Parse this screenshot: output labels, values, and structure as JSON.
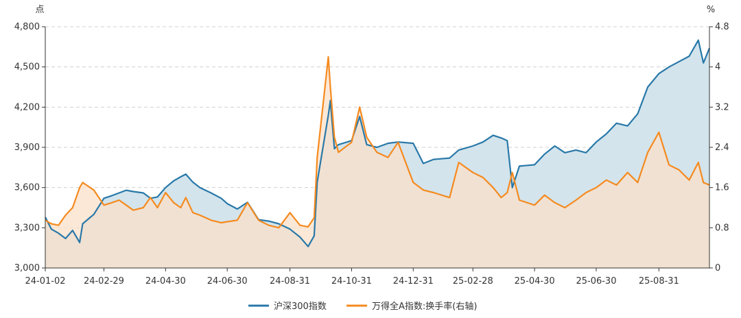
{
  "chart_data": {
    "type": "line",
    "left_axis_unit": "点",
    "right_axis_unit": "%",
    "y_left": {
      "min": 3000,
      "max": 4800,
      "ticks": [
        3000,
        3300,
        3600,
        3900,
        4200,
        4500,
        4800
      ],
      "tick_labels": [
        "3,000",
        "3,300",
        "3,600",
        "3,900",
        "4,200",
        "4,500",
        "4,800"
      ]
    },
    "y_right": {
      "min": 0,
      "max": 4.8,
      "ticks": [
        0,
        0.8,
        1.6,
        2.4,
        3.2,
        4,
        4.8
      ],
      "tick_labels": [
        "0",
        "0.8",
        "1.6",
        "2.4",
        "3.2",
        "4",
        "4.8"
      ]
    },
    "x_ticks": [
      "24-01-02",
      "24-02-29",
      "24-04-30",
      "24-06-30",
      "24-08-31",
      "24-10-31",
      "24-12-31",
      "25-02-28",
      "25-04-30",
      "25-06-30",
      "25-08-31"
    ],
    "x_range": [
      "2024-01-02",
      "2025-10-20"
    ],
    "grid": true,
    "legend_position": "bottom-center",
    "series": [
      {
        "name": "沪深300指数",
        "axis": "left",
        "color": "#2878a8",
        "fill": "#d3e4ec",
        "points": [
          [
            "2024-01-02",
            3380
          ],
          [
            "2024-01-08",
            3290
          ],
          [
            "2024-01-15",
            3260
          ],
          [
            "2024-01-22",
            3220
          ],
          [
            "2024-01-29",
            3280
          ],
          [
            "2024-02-05",
            3190
          ],
          [
            "2024-02-08",
            3330
          ],
          [
            "2024-02-19",
            3400
          ],
          [
            "2024-02-29",
            3520
          ],
          [
            "2024-03-08",
            3540
          ],
          [
            "2024-03-15",
            3560
          ],
          [
            "2024-03-22",
            3580
          ],
          [
            "2024-03-29",
            3570
          ],
          [
            "2024-04-08",
            3560
          ],
          [
            "2024-04-15",
            3520
          ],
          [
            "2024-04-22",
            3530
          ],
          [
            "2024-04-30",
            3600
          ],
          [
            "2024-05-08",
            3650
          ],
          [
            "2024-05-15",
            3680
          ],
          [
            "2024-05-20",
            3700
          ],
          [
            "2024-05-27",
            3640
          ],
          [
            "2024-06-03",
            3600
          ],
          [
            "2024-06-14",
            3560
          ],
          [
            "2024-06-24",
            3520
          ],
          [
            "2024-06-30",
            3480
          ],
          [
            "2024-07-10",
            3440
          ],
          [
            "2024-07-20",
            3490
          ],
          [
            "2024-07-31",
            3360
          ],
          [
            "2024-08-10",
            3350
          ],
          [
            "2024-08-20",
            3330
          ],
          [
            "2024-08-31",
            3290
          ],
          [
            "2024-09-10",
            3230
          ],
          [
            "2024-09-18",
            3160
          ],
          [
            "2024-09-24",
            3240
          ],
          [
            "2024-09-27",
            3640
          ],
          [
            "2024-10-08",
            4140
          ],
          [
            "2024-10-10",
            4250
          ],
          [
            "2024-10-14",
            3890
          ],
          [
            "2024-10-18",
            3920
          ],
          [
            "2024-10-31",
            3950
          ],
          [
            "2024-11-08",
            4130
          ],
          [
            "2024-11-15",
            3920
          ],
          [
            "2024-11-25",
            3900
          ],
          [
            "2024-12-06",
            3930
          ],
          [
            "2024-12-16",
            3940
          ],
          [
            "2024-12-31",
            3930
          ],
          [
            "2025-01-10",
            3780
          ],
          [
            "2025-01-20",
            3810
          ],
          [
            "2025-02-05",
            3820
          ],
          [
            "2025-02-14",
            3880
          ],
          [
            "2025-02-28",
            3910
          ],
          [
            "2025-03-10",
            3940
          ],
          [
            "2025-03-20",
            3990
          ],
          [
            "2025-03-28",
            3970
          ],
          [
            "2025-04-03",
            3950
          ],
          [
            "2025-04-08",
            3600
          ],
          [
            "2025-04-15",
            3760
          ],
          [
            "2025-04-30",
            3770
          ],
          [
            "2025-05-10",
            3850
          ],
          [
            "2025-05-20",
            3910
          ],
          [
            "2025-05-30",
            3860
          ],
          [
            "2025-06-10",
            3880
          ],
          [
            "2025-06-20",
            3860
          ],
          [
            "2025-06-30",
            3940
          ],
          [
            "2025-07-10",
            4000
          ],
          [
            "2025-07-20",
            4080
          ],
          [
            "2025-07-31",
            4060
          ],
          [
            "2025-08-10",
            4150
          ],
          [
            "2025-08-20",
            4350
          ],
          [
            "2025-08-31",
            4450
          ],
          [
            "2025-09-10",
            4500
          ],
          [
            "2025-09-20",
            4540
          ],
          [
            "2025-09-30",
            4580
          ],
          [
            "2025-10-09",
            4700
          ],
          [
            "2025-10-14",
            4530
          ],
          [
            "2025-10-20",
            4640
          ]
        ]
      },
      {
        "name": "万得全A指数:换手率(右轴)",
        "axis": "right",
        "color": "#f58a1f",
        "fill": "#fbe0c9",
        "points": [
          [
            "2024-01-02",
            0.95
          ],
          [
            "2024-01-08",
            0.88
          ],
          [
            "2024-01-15",
            0.85
          ],
          [
            "2024-01-22",
            1.05
          ],
          [
            "2024-01-29",
            1.2
          ],
          [
            "2024-02-05",
            1.6
          ],
          [
            "2024-02-08",
            1.7
          ],
          [
            "2024-02-19",
            1.55
          ],
          [
            "2024-02-29",
            1.25
          ],
          [
            "2024-03-08",
            1.3
          ],
          [
            "2024-03-15",
            1.35
          ],
          [
            "2024-03-22",
            1.25
          ],
          [
            "2024-03-29",
            1.15
          ],
          [
            "2024-04-08",
            1.2
          ],
          [
            "2024-04-15",
            1.4
          ],
          [
            "2024-04-22",
            1.2
          ],
          [
            "2024-04-30",
            1.5
          ],
          [
            "2024-05-08",
            1.3
          ],
          [
            "2024-05-15",
            1.2
          ],
          [
            "2024-05-20",
            1.4
          ],
          [
            "2024-05-27",
            1.1
          ],
          [
            "2024-06-03",
            1.05
          ],
          [
            "2024-06-14",
            0.95
          ],
          [
            "2024-06-24",
            0.9
          ],
          [
            "2024-06-30",
            0.92
          ],
          [
            "2024-07-10",
            0.95
          ],
          [
            "2024-07-20",
            1.3
          ],
          [
            "2024-07-31",
            0.95
          ],
          [
            "2024-08-10",
            0.85
          ],
          [
            "2024-08-20",
            0.8
          ],
          [
            "2024-08-31",
            1.1
          ],
          [
            "2024-09-10",
            0.85
          ],
          [
            "2024-09-18",
            0.82
          ],
          [
            "2024-09-24",
            1.0
          ],
          [
            "2024-09-27",
            2.2
          ],
          [
            "2024-10-08",
            4.2
          ],
          [
            "2024-10-10",
            3.6
          ],
          [
            "2024-10-14",
            2.6
          ],
          [
            "2024-10-18",
            2.3
          ],
          [
            "2024-10-31",
            2.5
          ],
          [
            "2024-11-08",
            3.2
          ],
          [
            "2024-11-15",
            2.6
          ],
          [
            "2024-11-25",
            2.3
          ],
          [
            "2024-12-06",
            2.2
          ],
          [
            "2024-12-16",
            2.5
          ],
          [
            "2024-12-31",
            1.7
          ],
          [
            "2025-01-10",
            1.55
          ],
          [
            "2025-01-20",
            1.5
          ],
          [
            "2025-02-05",
            1.4
          ],
          [
            "2025-02-14",
            2.1
          ],
          [
            "2025-02-28",
            1.9
          ],
          [
            "2025-03-10",
            1.8
          ],
          [
            "2025-03-20",
            1.6
          ],
          [
            "2025-03-28",
            1.4
          ],
          [
            "2025-04-03",
            1.5
          ],
          [
            "2025-04-08",
            1.9
          ],
          [
            "2025-04-15",
            1.35
          ],
          [
            "2025-04-30",
            1.25
          ],
          [
            "2025-05-10",
            1.45
          ],
          [
            "2025-05-20",
            1.3
          ],
          [
            "2025-05-30",
            1.2
          ],
          [
            "2025-06-10",
            1.35
          ],
          [
            "2025-06-20",
            1.5
          ],
          [
            "2025-06-30",
            1.6
          ],
          [
            "2025-07-10",
            1.75
          ],
          [
            "2025-07-20",
            1.65
          ],
          [
            "2025-07-31",
            1.9
          ],
          [
            "2025-08-10",
            1.7
          ],
          [
            "2025-08-20",
            2.3
          ],
          [
            "2025-08-31",
            2.7
          ],
          [
            "2025-09-10",
            2.05
          ],
          [
            "2025-09-20",
            1.95
          ],
          [
            "2025-09-30",
            1.75
          ],
          [
            "2025-10-09",
            2.1
          ],
          [
            "2025-10-14",
            1.7
          ],
          [
            "2025-10-20",
            1.65
          ]
        ]
      }
    ]
  }
}
